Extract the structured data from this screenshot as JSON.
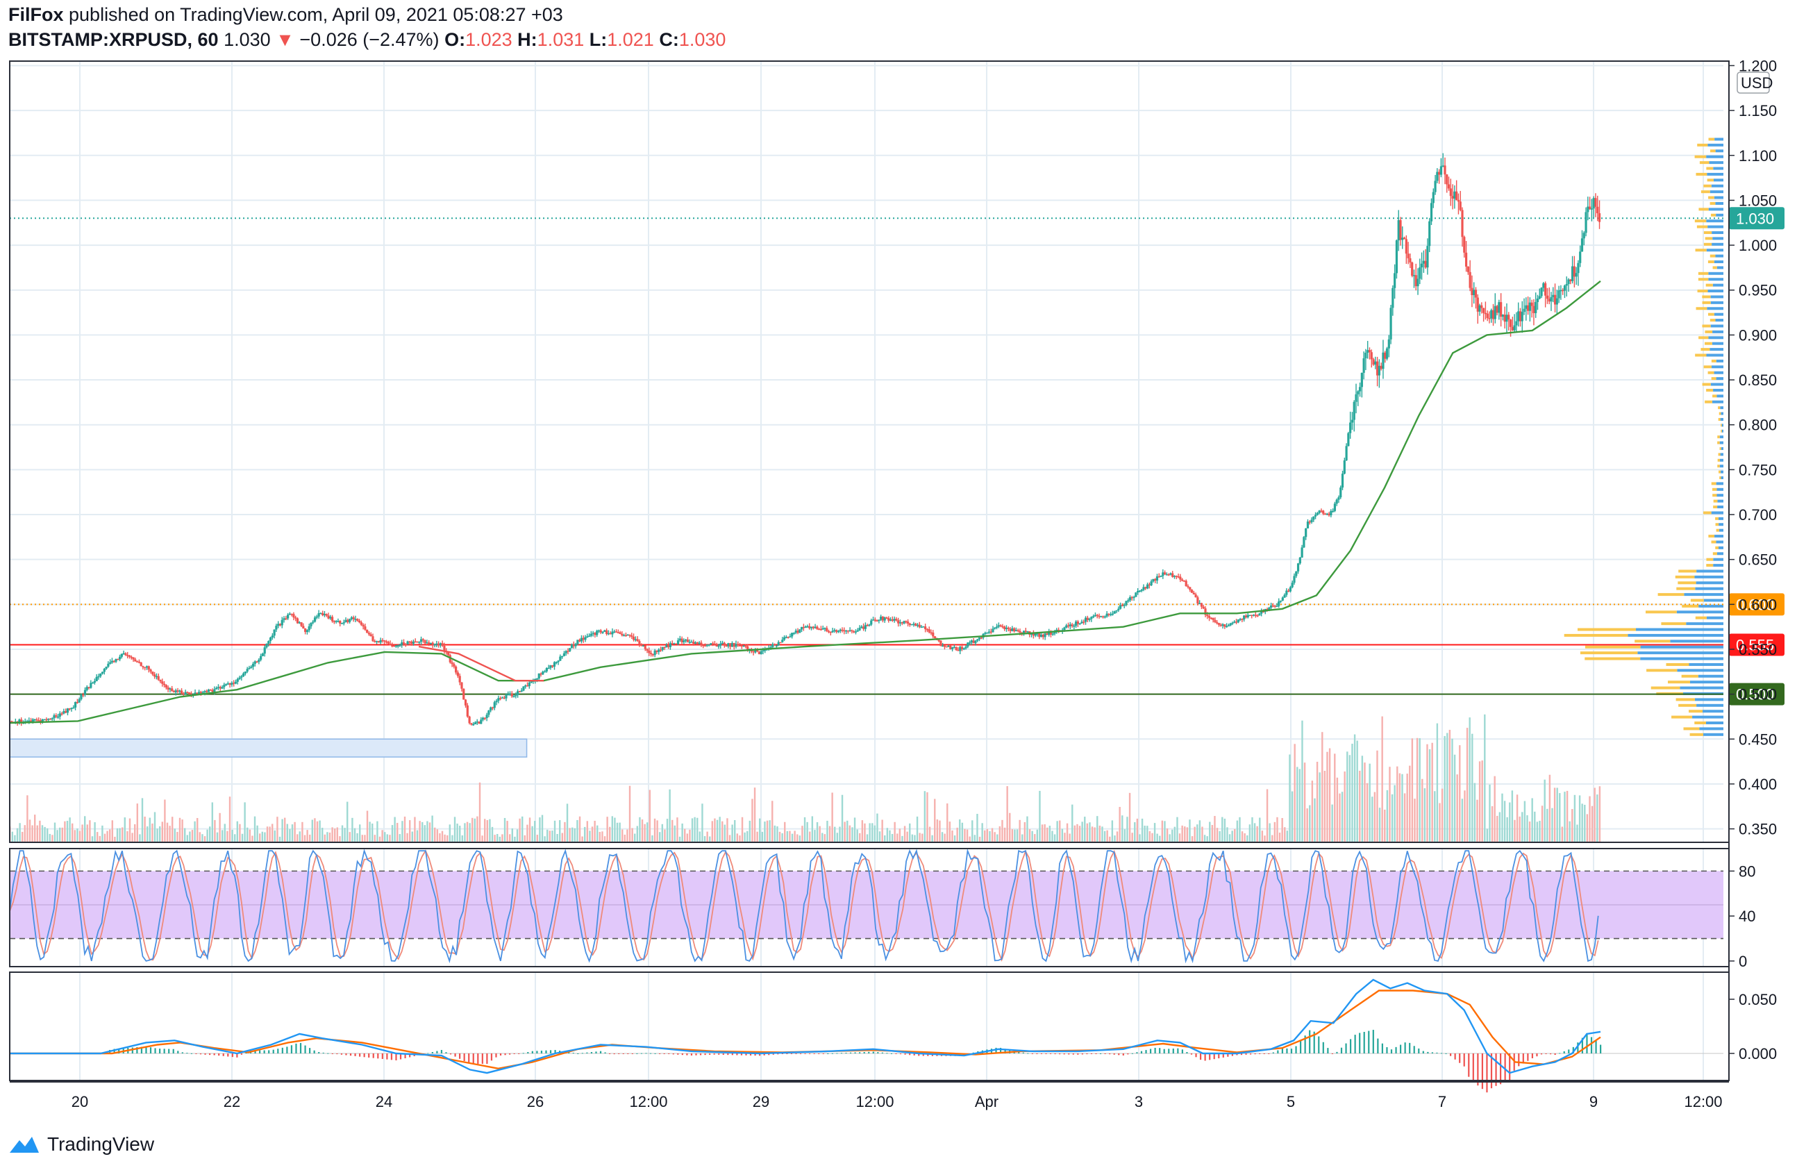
{
  "header": {
    "author": "FilFox",
    "published_text": "published on TradingView.com, April 09, 2021 05:08:27 +03",
    "symbol": "BITSTAMP:XRPUSD, 60",
    "last": "1.030",
    "change_arrow": "▼",
    "change": "−0.026 (−2.47%)",
    "open_label": "O:",
    "open": "1.023",
    "high_label": "H:",
    "high": "1.031",
    "low_label": "L:",
    "low": "1.021",
    "close_label": "C:",
    "close": "1.030"
  },
  "footer": {
    "brand": "TradingView",
    "logo_icon": "tradingview-logo-icon"
  },
  "colors": {
    "up": "#26a69a",
    "down": "#ef5350",
    "ma": "#3d9a3d",
    "ma_red": "#ef5350",
    "rsi_band": "#e1c8fa",
    "macd_line": "#2196f3",
    "signal_line": "#ff6d00",
    "level_orange": "#ff9800",
    "level_red": "#ff1a1a",
    "level_green": "#33691e",
    "current_price": "#26a69a",
    "zone": "#dce9f9"
  },
  "chart_data": [
    {
      "type": "candlestick",
      "pane": "price",
      "currency_label": "USD",
      "y_ticks": [
        "1.200",
        "1.150",
        "1.100",
        "1.050",
        "1.000",
        "0.950",
        "0.900",
        "0.850",
        "0.800",
        "0.750",
        "0.700",
        "0.650",
        "0.600",
        "0.550",
        "0.500",
        "0.450",
        "0.400",
        "0.350"
      ],
      "ylim": [
        0.335,
        1.205
      ],
      "x_labels": [
        "20",
        "22",
        "24",
        "26",
        "12:00",
        "29",
        "12:00",
        "Apr",
        "3",
        "5",
        "7",
        "9",
        "12:00"
      ],
      "price_path": [
        [
          0,
          0.47
        ],
        [
          20,
          0.47
        ],
        [
          35,
          0.472
        ],
        [
          55,
          0.485
        ],
        [
          80,
          0.525
        ],
        [
          100,
          0.545
        ],
        [
          120,
          0.53
        ],
        [
          140,
          0.505
        ],
        [
          160,
          0.5
        ],
        [
          180,
          0.505
        ],
        [
          200,
          0.515
        ],
        [
          220,
          0.54
        ],
        [
          235,
          0.575
        ],
        [
          248,
          0.59
        ],
        [
          260,
          0.57
        ],
        [
          272,
          0.59
        ],
        [
          290,
          0.58
        ],
        [
          305,
          0.585
        ],
        [
          320,
          0.56
        ],
        [
          340,
          0.555
        ],
        [
          360,
          0.56
        ],
        [
          380,
          0.555
        ],
        [
          395,
          0.52
        ],
        [
          405,
          0.465
        ],
        [
          415,
          0.47
        ],
        [
          430,
          0.495
        ],
        [
          445,
          0.5
        ],
        [
          460,
          0.515
        ],
        [
          480,
          0.535
        ],
        [
          500,
          0.56
        ],
        [
          520,
          0.57
        ],
        [
          545,
          0.565
        ],
        [
          565,
          0.545
        ],
        [
          590,
          0.56
        ],
        [
          615,
          0.555
        ],
        [
          640,
          0.555
        ],
        [
          660,
          0.545
        ],
        [
          680,
          0.56
        ],
        [
          700,
          0.575
        ],
        [
          725,
          0.57
        ],
        [
          745,
          0.57
        ],
        [
          765,
          0.585
        ],
        [
          785,
          0.58
        ],
        [
          805,
          0.575
        ],
        [
          820,
          0.555
        ],
        [
          835,
          0.55
        ],
        [
          850,
          0.56
        ],
        [
          870,
          0.575
        ],
        [
          890,
          0.57
        ],
        [
          910,
          0.565
        ],
        [
          930,
          0.575
        ],
        [
          950,
          0.585
        ],
        [
          970,
          0.59
        ],
        [
          985,
          0.605
        ],
        [
          1000,
          0.62
        ],
        [
          1015,
          0.635
        ],
        [
          1030,
          0.63
        ],
        [
          1042,
          0.61
        ],
        [
          1055,
          0.585
        ],
        [
          1070,
          0.575
        ],
        [
          1085,
          0.585
        ],
        [
          1100,
          0.59
        ],
        [
          1115,
          0.6
        ],
        [
          1128,
          0.62
        ],
        [
          1135,
          0.65
        ],
        [
          1142,
          0.69
        ],
        [
          1152,
          0.705
        ],
        [
          1162,
          0.7
        ],
        [
          1170,
          0.72
        ],
        [
          1178,
          0.79
        ],
        [
          1186,
          0.84
        ],
        [
          1195,
          0.88
        ],
        [
          1205,
          0.86
        ],
        [
          1213,
          0.89
        ],
        [
          1222,
          1.02
        ],
        [
          1230,
          0.99
        ],
        [
          1238,
          0.96
        ],
        [
          1246,
          0.98
        ],
        [
          1252,
          1.06
        ],
        [
          1260,
          1.09
        ],
        [
          1268,
          1.06
        ],
        [
          1276,
          1.04
        ],
        [
          1284,
          0.96
        ],
        [
          1292,
          0.93
        ],
        [
          1300,
          0.92
        ],
        [
          1310,
          0.93
        ],
        [
          1320,
          0.91
        ],
        [
          1330,
          0.92
        ],
        [
          1340,
          0.93
        ],
        [
          1350,
          0.95
        ],
        [
          1360,
          0.94
        ],
        [
          1370,
          0.96
        ],
        [
          1380,
          0.98
        ],
        [
          1388,
          1.04
        ],
        [
          1395,
          1.05
        ],
        [
          1400,
          1.03
        ]
      ],
      "ma_green_path": [
        [
          0,
          0.468
        ],
        [
          60,
          0.47
        ],
        [
          110,
          0.485
        ],
        [
          150,
          0.497
        ],
        [
          200,
          0.505
        ],
        [
          240,
          0.52
        ],
        [
          280,
          0.535
        ],
        [
          330,
          0.547
        ],
        [
          380,
          0.545
        ],
        [
          430,
          0.515
        ],
        [
          470,
          0.515
        ],
        [
          520,
          0.53
        ],
        [
          600,
          0.545
        ],
        [
          700,
          0.553
        ],
        [
          800,
          0.56
        ],
        [
          900,
          0.568
        ],
        [
          980,
          0.575
        ],
        [
          1030,
          0.59
        ],
        [
          1080,
          0.59
        ],
        [
          1120,
          0.595
        ],
        [
          1150,
          0.61
        ],
        [
          1180,
          0.66
        ],
        [
          1210,
          0.73
        ],
        [
          1240,
          0.81
        ],
        [
          1270,
          0.88
        ],
        [
          1300,
          0.9
        ],
        [
          1340,
          0.905
        ],
        [
          1370,
          0.93
        ],
        [
          1400,
          0.96
        ]
      ],
      "ma_red_path": [
        [
          360,
          0.553
        ],
        [
          395,
          0.545
        ],
        [
          420,
          0.53
        ],
        [
          445,
          0.515
        ],
        [
          470,
          0.515
        ]
      ],
      "levels": [
        {
          "value": 0.6,
          "label": "0.600",
          "style": "dotted",
          "color_key": "level_orange"
        },
        {
          "value": 0.555,
          "label": "0.555",
          "style": "solid",
          "color_key": "level_red"
        },
        {
          "value": 0.5,
          "label": "0.500",
          "style": "solid",
          "color_key": "level_green"
        }
      ],
      "current_price": {
        "value": 1.03,
        "label": "1.030"
      },
      "zone": {
        "x_start": 0,
        "x_end": 455,
        "y_top": 0.45,
        "y_bottom": 0.43
      }
    },
    {
      "type": "line",
      "pane": "stochastic_rsi",
      "y_ticks": [
        "80",
        "40",
        "0"
      ],
      "ylim": [
        -5,
        100
      ],
      "band": [
        20,
        80
      ],
      "cycles": 32
    },
    {
      "type": "line",
      "pane": "macd",
      "y_ticks": [
        "0.050",
        "0.000"
      ],
      "ylim": [
        -0.025,
        0.075
      ],
      "macd_path": [
        [
          0,
          0.0
        ],
        [
          80,
          0.0
        ],
        [
          120,
          0.01
        ],
        [
          145,
          0.012
        ],
        [
          170,
          0.006
        ],
        [
          200,
          0.0
        ],
        [
          230,
          0.008
        ],
        [
          255,
          0.018
        ],
        [
          275,
          0.014
        ],
        [
          310,
          0.008
        ],
        [
          340,
          0.0
        ],
        [
          380,
          -0.002
        ],
        [
          405,
          -0.015
        ],
        [
          420,
          -0.018
        ],
        [
          450,
          -0.01
        ],
        [
          480,
          0.0
        ],
        [
          520,
          0.008
        ],
        [
          560,
          0.006
        ],
        [
          600,
          0.002
        ],
        [
          660,
          0.0
        ],
        [
          720,
          0.002
        ],
        [
          760,
          0.004
        ],
        [
          800,
          0.0
        ],
        [
          840,
          -0.002
        ],
        [
          870,
          0.004
        ],
        [
          900,
          0.002
        ],
        [
          940,
          0.002
        ],
        [
          980,
          0.004
        ],
        [
          1010,
          0.012
        ],
        [
          1030,
          0.01
        ],
        [
          1050,
          0.0
        ],
        [
          1080,
          0.0
        ],
        [
          1110,
          0.004
        ],
        [
          1130,
          0.012
        ],
        [
          1145,
          0.03
        ],
        [
          1165,
          0.028
        ],
        [
          1185,
          0.055
        ],
        [
          1200,
          0.068
        ],
        [
          1215,
          0.06
        ],
        [
          1230,
          0.065
        ],
        [
          1245,
          0.058
        ],
        [
          1265,
          0.055
        ],
        [
          1280,
          0.04
        ],
        [
          1300,
          0.0
        ],
        [
          1320,
          -0.018
        ],
        [
          1340,
          -0.012
        ],
        [
          1360,
          -0.008
        ],
        [
          1375,
          0.0
        ],
        [
          1388,
          0.018
        ],
        [
          1400,
          0.02
        ]
      ],
      "signal_path": [
        [
          0,
          0.0
        ],
        [
          90,
          0.0
        ],
        [
          130,
          0.008
        ],
        [
          150,
          0.01
        ],
        [
          180,
          0.005
        ],
        [
          210,
          0.001
        ],
        [
          245,
          0.01
        ],
        [
          270,
          0.014
        ],
        [
          310,
          0.01
        ],
        [
          350,
          0.002
        ],
        [
          400,
          -0.008
        ],
        [
          430,
          -0.014
        ],
        [
          460,
          -0.008
        ],
        [
          500,
          0.004
        ],
        [
          530,
          0.008
        ],
        [
          570,
          0.005
        ],
        [
          620,
          0.002
        ],
        [
          680,
          0.001
        ],
        [
          760,
          0.003
        ],
        [
          810,
          0.001
        ],
        [
          850,
          -0.001
        ],
        [
          890,
          0.002
        ],
        [
          960,
          0.003
        ],
        [
          1015,
          0.009
        ],
        [
          1045,
          0.005
        ],
        [
          1080,
          0.001
        ],
        [
          1120,
          0.005
        ],
        [
          1150,
          0.018
        ],
        [
          1180,
          0.04
        ],
        [
          1205,
          0.058
        ],
        [
          1235,
          0.058
        ],
        [
          1265,
          0.055
        ],
        [
          1285,
          0.045
        ],
        [
          1305,
          0.015
        ],
        [
          1325,
          -0.008
        ],
        [
          1350,
          -0.01
        ],
        [
          1375,
          -0.003
        ],
        [
          1400,
          0.015
        ]
      ]
    }
  ]
}
